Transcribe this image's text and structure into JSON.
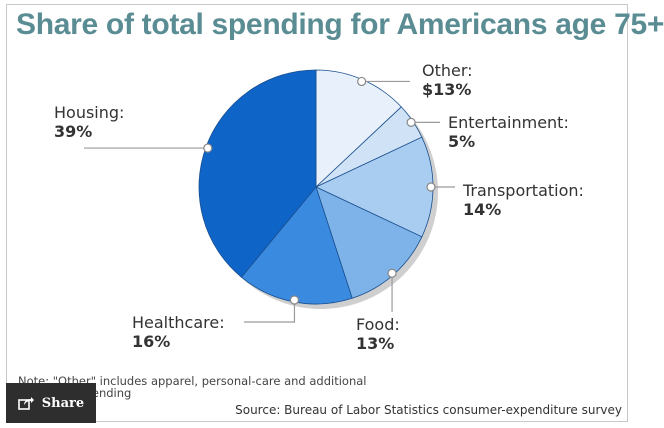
{
  "chart_data": {
    "type": "pie",
    "title": "Share of total spending for Americans age 75+",
    "slices": [
      {
        "label": "Other:",
        "value_text": "$13%",
        "value": 13,
        "color": "#e8f1fb"
      },
      {
        "label": "Entertainment:",
        "value_text": "5%",
        "value": 5,
        "color": "#cfe2f6"
      },
      {
        "label": "Transportation:",
        "value_text": "14%",
        "value": 14,
        "color": "#a9cdf0"
      },
      {
        "label": "Food:",
        "value_text": "13%",
        "value": 13,
        "color": "#7db3e8"
      },
      {
        "label": "Healthcare:",
        "value_text": "16%",
        "value": 16,
        "color": "#3a8ae0"
      },
      {
        "label": "Housing:",
        "value_text": "39%",
        "value": 39,
        "color": "#0f64c8"
      }
    ],
    "note": "Note: \"Other\" includes apparel, personal-care and additional consumer spending",
    "source": "Source: Bureau of Labor Statistics consumer-expenditure survey"
  },
  "share": {
    "label": "Share",
    "icon": "share-icon"
  },
  "colors": {
    "title": "#5a8c93",
    "outline": "#1a4f8f"
  }
}
